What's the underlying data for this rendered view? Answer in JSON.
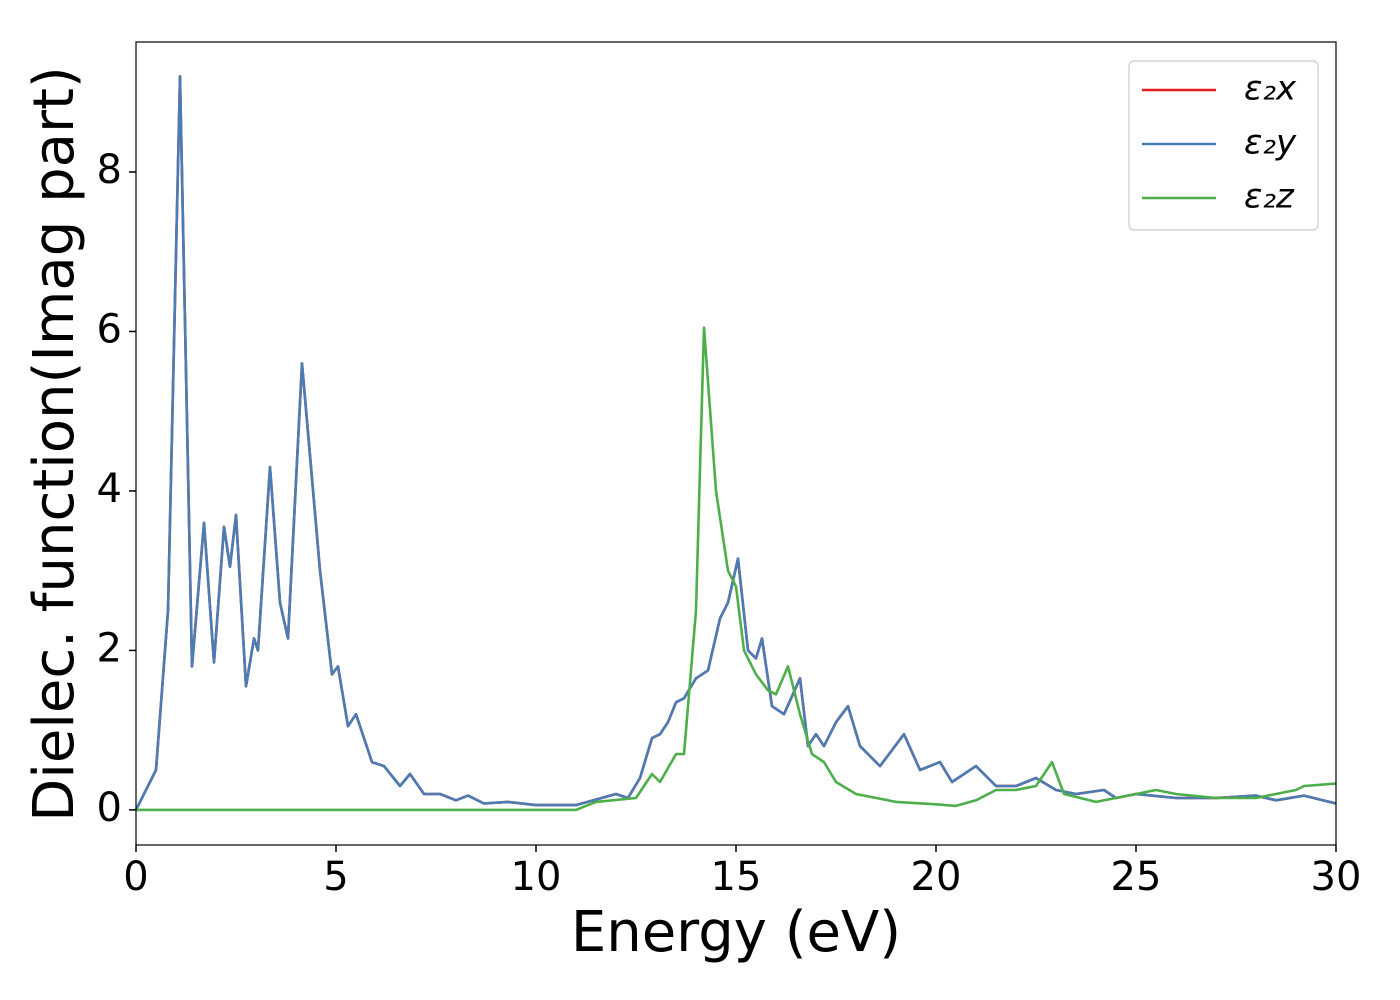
{
  "chart_data": {
    "type": "line",
    "xlabel": "Energy (eV)",
    "ylabel": "Dielec. function(Imag part)",
    "xlim": [
      0,
      30
    ],
    "ylim": [
      -0.44,
      9.63
    ],
    "xticks": [
      0,
      5,
      10,
      15,
      20,
      25,
      30
    ],
    "yticks": [
      0,
      2,
      4,
      6,
      8
    ],
    "legend": "upper right",
    "series": [
      {
        "name": "ε₂x",
        "color": "#e41a1c",
        "x": [
          0,
          0.5,
          0.8,
          1.1,
          1.4,
          1.7,
          1.95,
          2.2,
          2.35,
          2.5,
          2.75,
          2.95,
          3.05,
          3.35,
          3.6,
          3.8,
          4.15,
          4.6,
          4.9,
          5.05,
          5.3,
          5.5,
          5.9,
          6.2,
          6.6,
          6.85,
          7.2,
          7.6,
          8.0,
          8.3,
          8.7,
          9.3,
          10,
          11,
          12,
          12.3,
          12.6,
          12.9,
          13.1,
          13.3,
          13.5,
          13.7,
          14,
          14.3,
          14.6,
          14.8,
          15.05,
          15.3,
          15.5,
          15.65,
          15.9,
          16.2,
          16.6,
          16.8,
          17,
          17.2,
          17.5,
          17.8,
          18.1,
          18.6,
          19.2,
          19.6,
          20.1,
          20.4,
          21,
          21.5,
          22,
          22.5,
          23,
          23.5,
          24.2,
          24.5,
          25,
          26,
          27,
          28,
          28.5,
          29.2,
          30
        ],
        "values": [
          0,
          0.5,
          2.5,
          9.2,
          1.8,
          3.6,
          1.85,
          3.55,
          3.05,
          3.7,
          1.55,
          2.15,
          2.0,
          4.3,
          2.6,
          2.15,
          5.6,
          3.0,
          1.7,
          1.8,
          1.05,
          1.2,
          0.6,
          0.55,
          0.3,
          0.45,
          0.2,
          0.2,
          0.12,
          0.18,
          0.08,
          0.1,
          0.06,
          0.06,
          0.2,
          0.15,
          0.4,
          0.9,
          0.95,
          1.1,
          1.35,
          1.4,
          1.65,
          1.75,
          2.4,
          2.6,
          3.15,
          2.0,
          1.9,
          2.15,
          1.3,
          1.2,
          1.65,
          0.8,
          0.95,
          0.8,
          1.1,
          1.3,
          0.8,
          0.55,
          0.95,
          0.5,
          0.6,
          0.35,
          0.55,
          0.3,
          0.3,
          0.4,
          0.25,
          0.2,
          0.25,
          0.15,
          0.2,
          0.15,
          0.15,
          0.18,
          0.12,
          0.18,
          0.08
        ]
      },
      {
        "name": "ε₂y",
        "color": "#4a7db3",
        "x": [
          0,
          0.5,
          0.8,
          1.1,
          1.4,
          1.7,
          1.95,
          2.2,
          2.35,
          2.5,
          2.75,
          2.95,
          3.05,
          3.35,
          3.6,
          3.8,
          4.15,
          4.6,
          4.9,
          5.05,
          5.3,
          5.5,
          5.9,
          6.2,
          6.6,
          6.85,
          7.2,
          7.6,
          8.0,
          8.3,
          8.7,
          9.3,
          10,
          11,
          12,
          12.3,
          12.6,
          12.9,
          13.1,
          13.3,
          13.5,
          13.7,
          14,
          14.3,
          14.6,
          14.8,
          15.05,
          15.3,
          15.5,
          15.65,
          15.9,
          16.2,
          16.6,
          16.8,
          17,
          17.2,
          17.5,
          17.8,
          18.1,
          18.6,
          19.2,
          19.6,
          20.1,
          20.4,
          21,
          21.5,
          22,
          22.5,
          23,
          23.5,
          24.2,
          24.5,
          25,
          26,
          27,
          28,
          28.5,
          29.2,
          30
        ],
        "values": [
          0,
          0.5,
          2.5,
          9.2,
          1.8,
          3.6,
          1.85,
          3.55,
          3.05,
          3.7,
          1.55,
          2.15,
          2.0,
          4.3,
          2.6,
          2.15,
          5.6,
          3.0,
          1.7,
          1.8,
          1.05,
          1.2,
          0.6,
          0.55,
          0.3,
          0.45,
          0.2,
          0.2,
          0.12,
          0.18,
          0.08,
          0.1,
          0.06,
          0.06,
          0.2,
          0.15,
          0.4,
          0.9,
          0.95,
          1.1,
          1.35,
          1.4,
          1.65,
          1.75,
          2.4,
          2.6,
          3.15,
          2.0,
          1.9,
          2.15,
          1.3,
          1.2,
          1.65,
          0.8,
          0.95,
          0.8,
          1.1,
          1.3,
          0.8,
          0.55,
          0.95,
          0.5,
          0.6,
          0.35,
          0.55,
          0.3,
          0.3,
          0.4,
          0.25,
          0.2,
          0.25,
          0.15,
          0.2,
          0.15,
          0.15,
          0.18,
          0.12,
          0.18,
          0.08
        ]
      },
      {
        "name": "ε₂z",
        "color": "#4daf4a",
        "x": [
          0,
          11,
          11.5,
          12.5,
          12.9,
          13.1,
          13.5,
          13.7,
          14.0,
          14.2,
          14.5,
          14.8,
          15,
          15.2,
          15.5,
          15.8,
          16.0,
          16.3,
          16.6,
          16.9,
          17.2,
          17.5,
          18,
          19,
          20,
          20.5,
          21,
          21.5,
          22,
          22.5,
          22.9,
          23.2,
          24,
          25,
          25.5,
          26,
          27,
          28,
          29,
          29.2,
          30
        ],
        "values": [
          0,
          0,
          0.1,
          0.15,
          0.45,
          0.35,
          0.7,
          0.7,
          2.5,
          6.05,
          4.0,
          3.0,
          2.8,
          2.0,
          1.7,
          1.5,
          1.45,
          1.8,
          1.2,
          0.7,
          0.6,
          0.35,
          0.2,
          0.1,
          0.07,
          0.05,
          0.12,
          0.25,
          0.25,
          0.3,
          0.6,
          0.2,
          0.1,
          0.2,
          0.25,
          0.2,
          0.15,
          0.15,
          0.25,
          0.3,
          0.33
        ]
      }
    ]
  }
}
